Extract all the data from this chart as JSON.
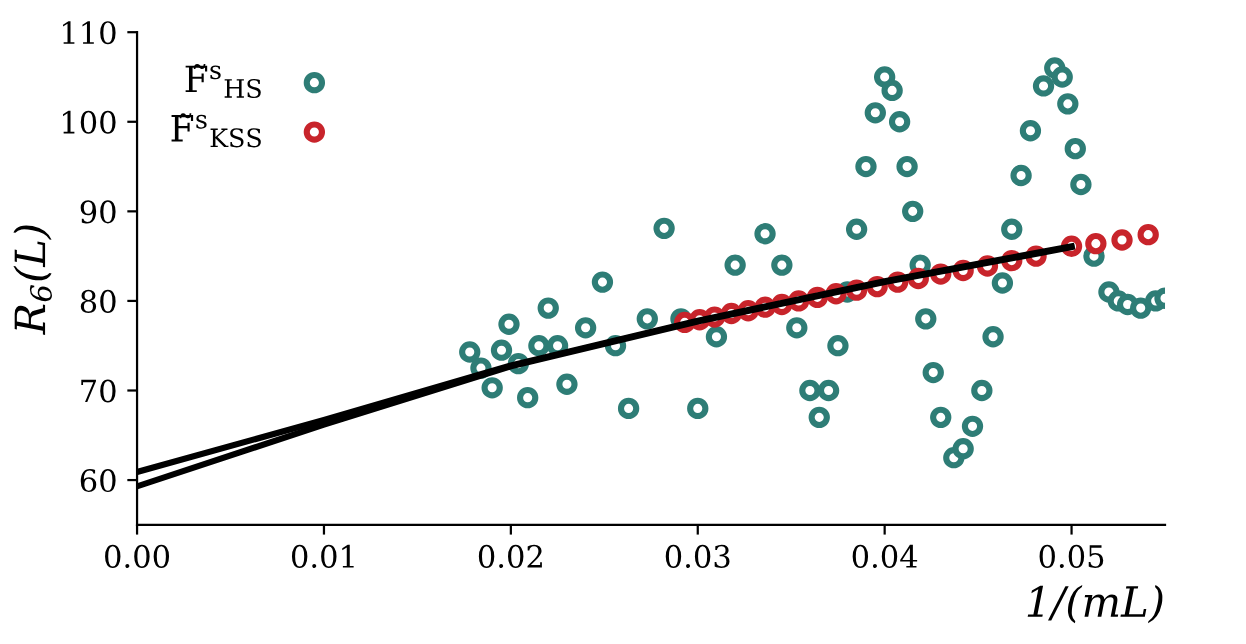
{
  "chart_data": {
    "type": "scatter",
    "xlabel": "1/(mL)",
    "ylabel": "R$_{6}$(L)",
    "xlim": [
      0,
      0.055
    ],
    "ylim": [
      55,
      110
    ],
    "xticks": [
      {
        "value": 0,
        "label": "0.00"
      },
      {
        "value": 0.01,
        "label": "0.01"
      },
      {
        "value": 0.02,
        "label": "0.02"
      },
      {
        "value": 0.03,
        "label": "0.03"
      },
      {
        "value": 0.04,
        "label": "0.04"
      },
      {
        "value": 0.05,
        "label": "0.05"
      }
    ],
    "yticks": [
      60,
      70,
      80,
      90,
      100,
      110
    ],
    "grid": false,
    "legend": "top left",
    "series": [
      {
        "name": "F̃$^{s}$$_{HS}$",
        "color": "#2e7d76",
        "marker": "circle",
        "x": [
          0.0178,
          0.0184,
          0.019,
          0.0195,
          0.0199,
          0.0204,
          0.0209,
          0.0215,
          0.022,
          0.0225,
          0.023,
          0.024,
          0.0249,
          0.0256,
          0.0263,
          0.0273,
          0.0282,
          0.0291,
          0.03,
          0.031,
          0.032,
          0.0336,
          0.0345,
          0.0353,
          0.036,
          0.0365,
          0.037,
          0.0375,
          0.038,
          0.0385,
          0.039,
          0.0395,
          0.04,
          0.0404,
          0.0408,
          0.0412,
          0.0415,
          0.0419,
          0.0422,
          0.0426,
          0.043,
          0.0437,
          0.0442,
          0.0447,
          0.0452,
          0.0458,
          0.0463,
          0.0468,
          0.0473,
          0.0478,
          0.0485,
          0.0491,
          0.0495,
          0.0498,
          0.0502,
          0.0505,
          0.0512,
          0.052,
          0.0525,
          0.053,
          0.0537,
          0.0545,
          0.055
        ],
        "values": [
          74.3,
          72.5,
          70.3,
          74.5,
          77.4,
          73,
          69.2,
          75,
          79.2,
          75,
          70.7,
          77,
          82.1,
          75,
          68,
          78,
          88.1,
          78,
          68,
          76,
          84,
          87.5,
          84,
          77,
          70,
          67,
          70,
          75,
          81,
          88,
          95,
          101,
          105,
          103.5,
          100,
          95,
          90,
          84,
          78,
          72,
          67,
          62.5,
          63.5,
          66,
          70,
          76,
          82,
          88,
          94,
          99,
          104,
          106,
          105,
          102,
          97,
          93,
          85,
          81,
          80,
          79.6,
          79.2,
          80,
          80.3
        ]
      },
      {
        "name": "F̃$^{s}$$_{KSS}$",
        "color": "#c8242b",
        "marker": "circle",
        "x": [
          0.0293,
          0.0301,
          0.0309,
          0.0318,
          0.0327,
          0.0336,
          0.0345,
          0.0354,
          0.0364,
          0.0374,
          0.0385,
          0.0396,
          0.0407,
          0.0418,
          0.043,
          0.0442,
          0.0455,
          0.0468,
          0.0481,
          0.05,
          0.0513,
          0.0527,
          0.0541
        ],
        "values": [
          77.6,
          77.9,
          78.2,
          78.6,
          78.9,
          79.3,
          79.6,
          80,
          80.4,
          80.8,
          81.2,
          81.6,
          82.1,
          82.5,
          83,
          83.4,
          83.9,
          84.5,
          85,
          86.1,
          86.4,
          86.8,
          87.4
        ]
      },
      {
        "type": "line",
        "color": "#000000",
        "x": [
          0,
          0.01,
          0.02,
          0.03,
          0.04,
          0.05
        ],
        "values": [
          60.9,
          66.7,
          72.8,
          77.8,
          82.2,
          86.1
        ]
      },
      {
        "type": "line",
        "color": "#000000",
        "x": [
          0,
          0.01,
          0.02,
          0.03,
          0.04,
          0.05
        ],
        "values": [
          59.3,
          66.2,
          72.7,
          77.7,
          82.1,
          86.0
        ]
      }
    ]
  }
}
